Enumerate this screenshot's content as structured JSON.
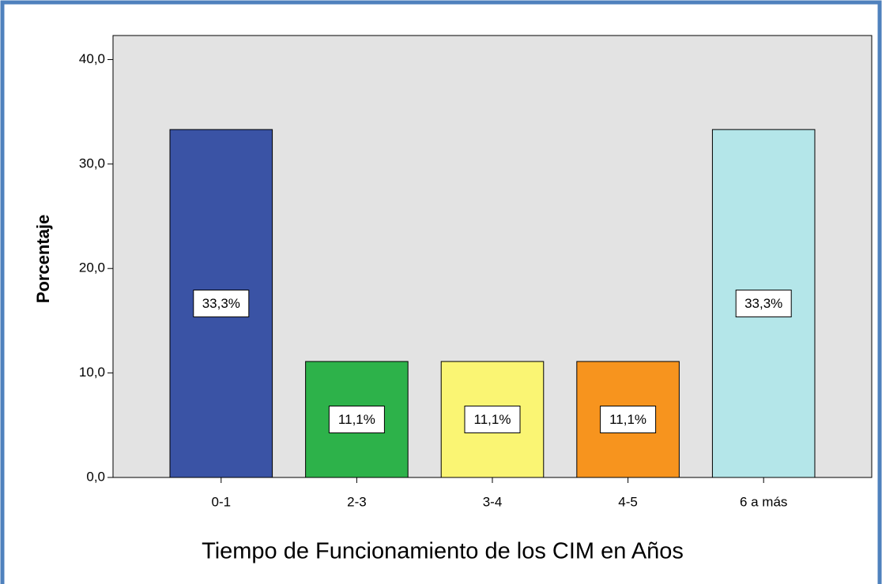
{
  "chart_data": {
    "type": "bar",
    "x_label": "Tiempo de Funcionamiento de los CIM en Años",
    "y_label": "Porcentaje",
    "categories": [
      "0-1",
      "2-3",
      "3-4",
      "4-5",
      "6 a más"
    ],
    "values": [
      33.3,
      11.1,
      11.1,
      11.1,
      33.3
    ],
    "value_labels": [
      "33,3%",
      "11,1%",
      "11,1%",
      "11,1%",
      "33,3%"
    ],
    "colors": [
      "#3a53a5",
      "#2db24a",
      "#faf573",
      "#f7941e",
      "#b4e6e9"
    ],
    "ylim": [
      0,
      42.3
    ],
    "yticks": [
      {
        "value": 0,
        "label": "0,0"
      },
      {
        "value": 10,
        "label": "10,0"
      },
      {
        "value": 20,
        "label": "20,0"
      },
      {
        "value": 30,
        "label": "30,0"
      },
      {
        "value": 40,
        "label": "40,0"
      }
    ],
    "grid": false
  }
}
